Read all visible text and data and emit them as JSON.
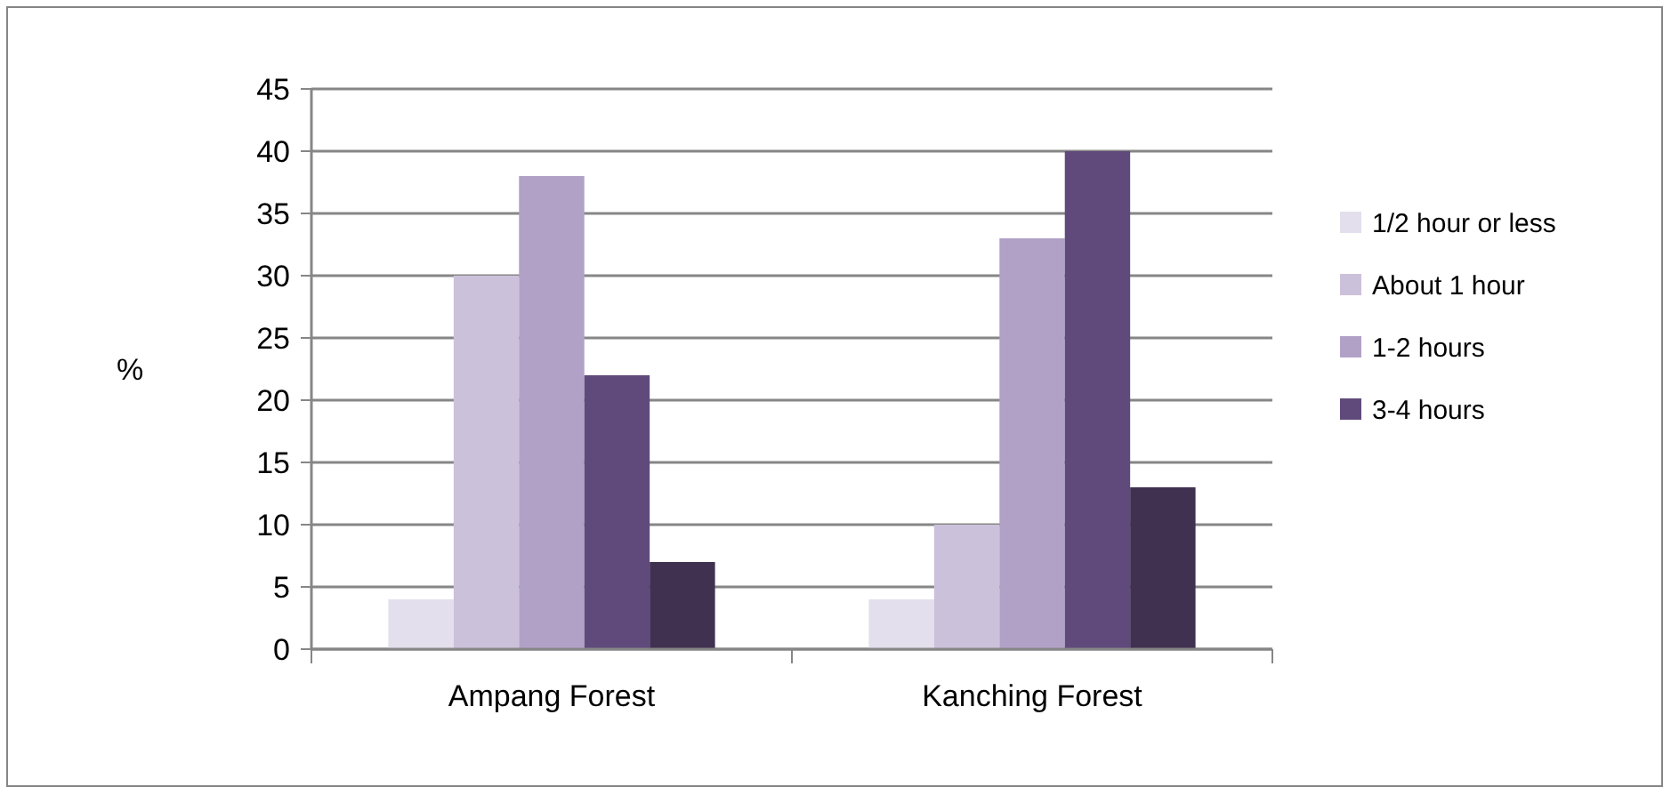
{
  "chart_data": {
    "type": "bar",
    "ylabel": "%",
    "categories": [
      "Ampang Forest",
      "Kanching Forest"
    ],
    "series": [
      {
        "name": "1/2 hour or less",
        "color": "#e4dfec",
        "values": [
          4,
          4
        ]
      },
      {
        "name": "About 1 hour",
        "color": "#ccc1da",
        "values": [
          30,
          10
        ]
      },
      {
        "name": "1-2 hours",
        "color": "#b2a1c7",
        "values": [
          38,
          33
        ]
      },
      {
        "name": "3-4 hours",
        "color": "#604a7b",
        "values": [
          22,
          40
        ]
      },
      {
        "color": "#403151",
        "values": [
          7,
          13
        ]
      }
    ],
    "ylim": [
      0,
      45
    ],
    "yticks": [
      0,
      5,
      10,
      15,
      20,
      25,
      30,
      35,
      40,
      45
    ],
    "grid": "y",
    "legend": "right"
  }
}
